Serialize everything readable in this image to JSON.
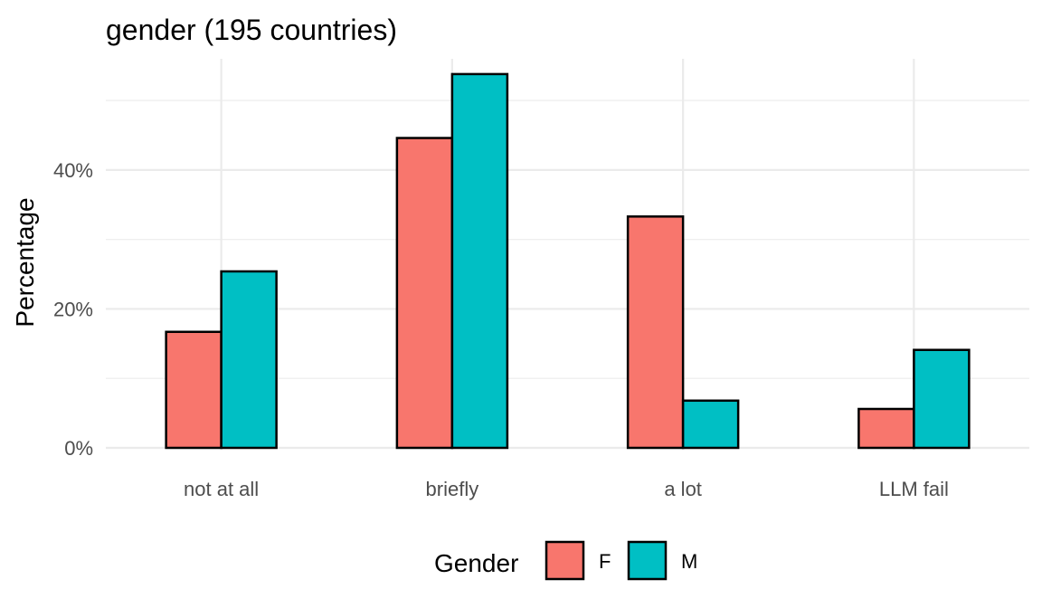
{
  "chart_data": {
    "type": "bar",
    "title": "gender (195 countries)",
    "xlabel": "",
    "ylabel": "Percentage",
    "categories": [
      "not at all",
      "briefly",
      "a lot",
      "LLM fail"
    ],
    "series": [
      {
        "name": "F",
        "color": "#F8766D",
        "values": [
          16.7,
          44.6,
          33.3,
          5.6
        ]
      },
      {
        "name": "M",
        "color": "#00BFC4",
        "values": [
          25.4,
          53.8,
          6.8,
          14.1
        ]
      }
    ],
    "ylim": [
      0,
      56
    ],
    "yticks": [
      0,
      20,
      40
    ],
    "ytick_labels": [
      "0%",
      "20%",
      "40%"
    ],
    "grid": true,
    "legend": {
      "title": "Gender",
      "placement": "bottom"
    }
  }
}
